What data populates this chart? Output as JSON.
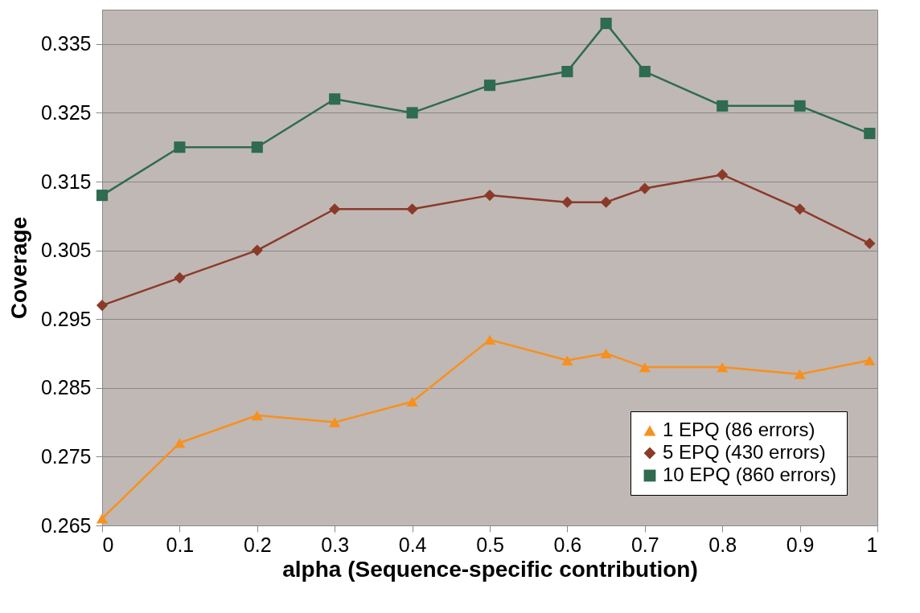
{
  "chart_data": {
    "type": "line",
    "xlabel": "alpha (Sequence-specific contribution)",
    "ylabel": "Coverage",
    "x": [
      0,
      0.1,
      0.2,
      0.3,
      0.4,
      0.5,
      0.6,
      0.65,
      0.7,
      0.8,
      0.9,
      0.99
    ],
    "series": [
      {
        "name": "1 EPQ (86 errors)",
        "color": "#f7901e",
        "marker": "triangle",
        "values": [
          0.266,
          0.277,
          0.281,
          0.28,
          0.283,
          0.292,
          0.289,
          0.29,
          0.288,
          0.288,
          0.287,
          0.289
        ]
      },
      {
        "name": "5 EPQ (430 errors)",
        "color": "#8b3a2a",
        "marker": "diamond",
        "values": [
          0.297,
          0.301,
          0.305,
          0.311,
          0.311,
          0.313,
          0.312,
          0.312,
          0.314,
          0.316,
          0.311,
          0.306
        ]
      },
      {
        "name": "10 EPQ (860 errors)",
        "color": "#2e6b4f",
        "marker": "square",
        "values": [
          0.313,
          0.32,
          0.32,
          0.327,
          0.325,
          0.329,
          0.331,
          0.338,
          0.331,
          0.326,
          0.326,
          0.322
        ]
      }
    ],
    "xlim": [
      0,
      1
    ],
    "xticks": [
      0,
      0.1,
      0.2,
      0.3,
      0.4,
      0.5,
      0.6,
      0.7,
      0.8,
      0.9,
      1
    ],
    "ylim": [
      0.265,
      0.34
    ],
    "yticks": [
      0.265,
      0.275,
      0.285,
      0.295,
      0.305,
      0.315,
      0.325,
      0.335
    ],
    "grid": "y",
    "legend": "bottom right",
    "line_style": "solid"
  }
}
